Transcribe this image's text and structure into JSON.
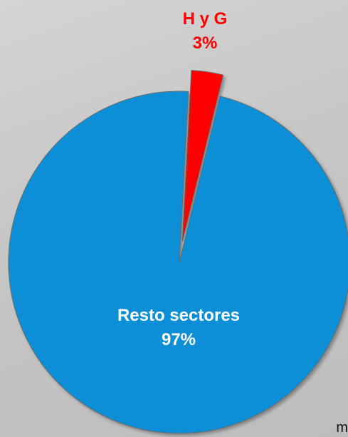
{
  "chart_data": {
    "type": "pie",
    "slices": [
      {
        "label": "H y G",
        "value_label": "3%",
        "value": 3,
        "color": "#ff0000",
        "text_color": "#ff0000",
        "exploded": true
      },
      {
        "label": "Resto sectores",
        "value_label": "97%",
        "value": 97,
        "color": "#0a8fd8",
        "text_color": "#ffffff",
        "exploded": false
      }
    ],
    "legend": "none"
  },
  "footer": {
    "corner_text": "m"
  }
}
